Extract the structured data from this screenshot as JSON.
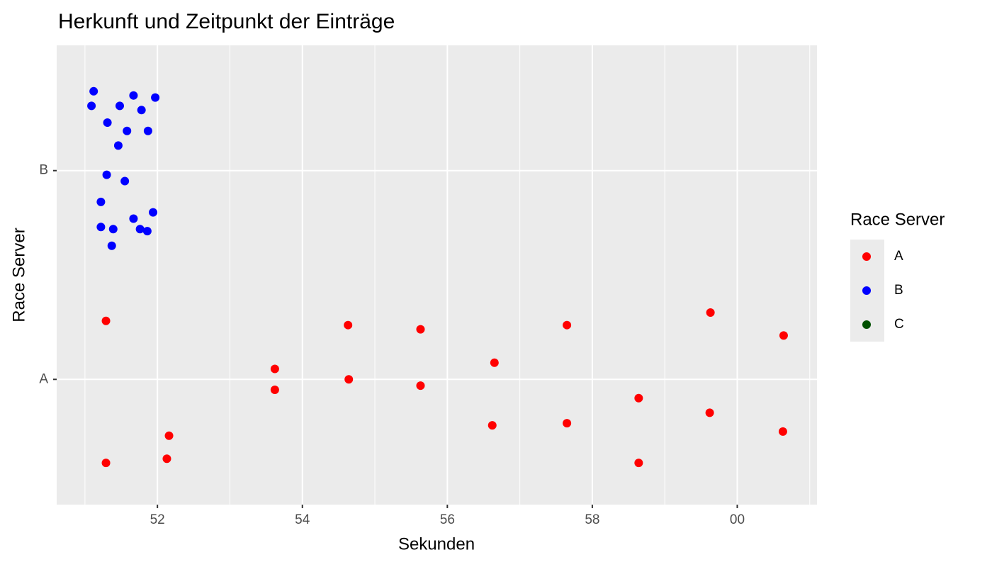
{
  "chart_data": {
    "type": "scatter",
    "title": "Herkunft und Zeitpunkt der Einträge",
    "x_label": "Sekunden",
    "y_label": "Race Server",
    "legend_title": "Race Server",
    "legend_position": "right",
    "xlim": [
      50.61,
      61.1
    ],
    "xticks": [
      52,
      54,
      56,
      58,
      {
        "value": 60,
        "label": "00"
      }
    ],
    "xminorticks": [
      51,
      53,
      55,
      57,
      59,
      61
    ],
    "ylim": [
      0.4,
      2.6
    ],
    "yticks": [
      {
        "value": 1,
        "label": "A"
      },
      {
        "value": 2,
        "label": "B"
      }
    ],
    "grid": true,
    "series": [
      {
        "name": "A",
        "color": "#ff0000",
        "x": [
          51.29,
          51.29,
          52.16,
          52.13,
          53.62,
          53.62,
          54.63,
          54.64,
          55.63,
          55.63,
          56.65,
          56.62,
          57.65,
          57.65,
          58.64,
          58.64,
          59.63,
          59.62,
          60.64,
          60.63
        ],
        "y": [
          1.28,
          0.6,
          0.73,
          0.62,
          1.05,
          0.95,
          1.26,
          1.0,
          1.24,
          0.97,
          1.08,
          0.78,
          1.26,
          0.79,
          0.91,
          0.6,
          1.32,
          0.84,
          1.21,
          0.75
        ]
      },
      {
        "name": "B",
        "color": "#0000ff",
        "x": [
          51.12,
          51.09,
          51.67,
          51.97,
          51.48,
          51.78,
          51.31,
          51.58,
          51.87,
          51.46,
          51.3,
          51.55,
          51.22,
          51.94,
          51.67,
          51.22,
          51.39,
          51.76,
          51.86,
          51.37
        ],
        "y": [
          2.38,
          2.31,
          2.36,
          2.35,
          2.31,
          2.29,
          2.23,
          2.19,
          2.19,
          2.12,
          1.98,
          1.95,
          1.85,
          1.8,
          1.77,
          1.73,
          1.72,
          1.72,
          1.71,
          1.64
        ]
      },
      {
        "name": "C",
        "color": "#005000",
        "x": [],
        "y": []
      }
    ]
  }
}
